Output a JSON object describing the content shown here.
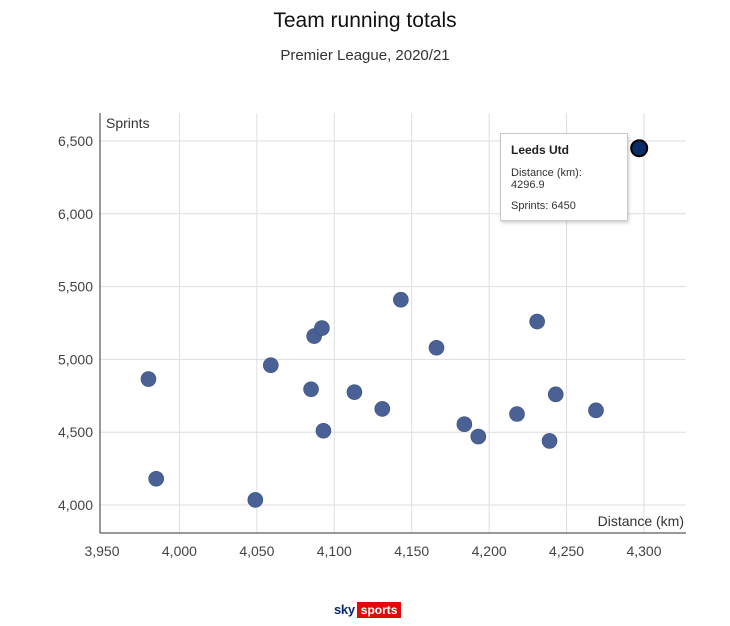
{
  "chart_data": {
    "type": "scatter",
    "title": "Team running totals",
    "subtitle": "Premier League, 2020/21",
    "xlabel": "Distance (km)",
    "ylabel": "Sprints",
    "xlim": [
      3950,
      4300
    ],
    "ylim": [
      4000,
      6500
    ],
    "xticks": [
      3950,
      4000,
      4050,
      4100,
      4150,
      4200,
      4250,
      4300
    ],
    "yticks": [
      4000,
      4500,
      5000,
      5500,
      6000,
      6500
    ],
    "xtick_labels": [
      "3,950",
      "4,000",
      "4,050",
      "4,100",
      "4,150",
      "4,200",
      "4,250",
      "4,300"
    ],
    "ytick_labels": [
      "4,000",
      "4,500",
      "5,000",
      "5,500",
      "6,000",
      "6,500"
    ],
    "grid": true,
    "point_color": "#4a6196",
    "highlight_color": "#0b2a66",
    "points": [
      {
        "x": 3980,
        "y": 4865
      },
      {
        "x": 3985,
        "y": 4180
      },
      {
        "x": 4049,
        "y": 4035
      },
      {
        "x": 4059,
        "y": 4960
      },
      {
        "x": 4085,
        "y": 4795
      },
      {
        "x": 4087,
        "y": 5160
      },
      {
        "x": 4092,
        "y": 5215
      },
      {
        "x": 4093,
        "y": 4510
      },
      {
        "x": 4113,
        "y": 4775
      },
      {
        "x": 4131,
        "y": 4660
      },
      {
        "x": 4143,
        "y": 5410
      },
      {
        "x": 4166,
        "y": 5080
      },
      {
        "x": 4184,
        "y": 4555
      },
      {
        "x": 4193,
        "y": 4470
      },
      {
        "x": 4218,
        "y": 4625
      },
      {
        "x": 4231,
        "y": 5260
      },
      {
        "x": 4239,
        "y": 4440
      },
      {
        "x": 4243,
        "y": 4760
      },
      {
        "x": 4269,
        "y": 4650
      },
      {
        "x": 4296.9,
        "y": 6450,
        "highlight": true
      }
    ],
    "tooltip": {
      "name": "Leeds Utd",
      "distance_text": "Distance (km): 4296.9",
      "sprints_text": "Sprints: 6450"
    }
  },
  "branding": {
    "logo_sky": "sky",
    "logo_sports": "sports"
  }
}
